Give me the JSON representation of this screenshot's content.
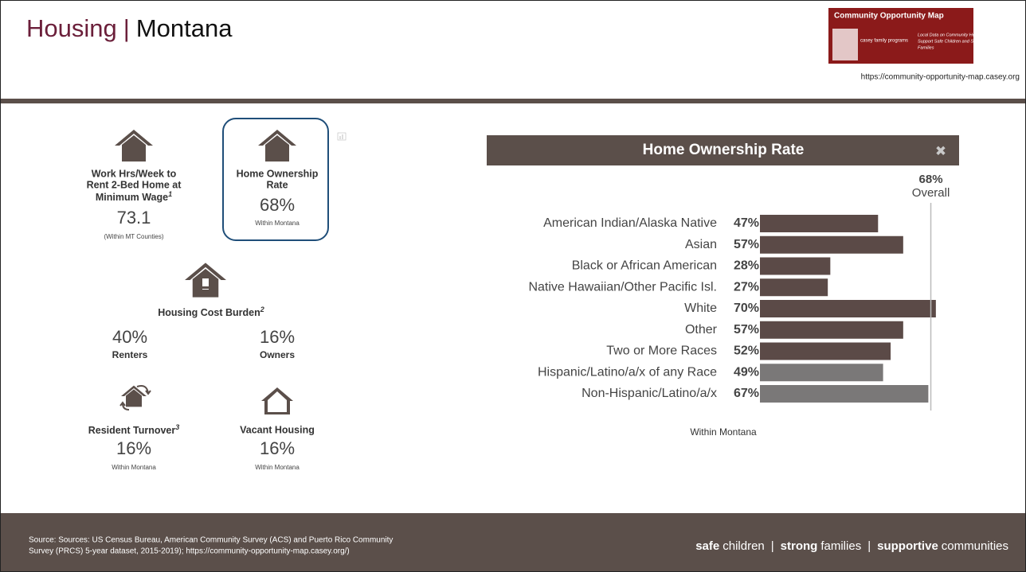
{
  "header": {
    "title": "Housing",
    "title_separator": "|",
    "subtitle": "Montana",
    "logo": {
      "title": "Community Opportunity Map",
      "brand": "casey family programs",
      "tagline": [
        "Local Data on Community Health to",
        "Support Safe Children and Strong",
        "Families"
      ]
    },
    "url": "https://community-opportunity-map.casey.org"
  },
  "tiles": [
    {
      "title": [
        "Work Hrs/Week to",
        "Rent 2-Bed Home at",
        "Minimum Wage"
      ],
      "footnote": "1",
      "value": "73.1",
      "note": "(Within MT Counties)"
    },
    {
      "title": [
        "Home Ownership",
        "Rate"
      ],
      "value": "68%",
      "note": "Within Montana"
    },
    {
      "title": [
        "Housing Cost Burden"
      ],
      "footnote": "2",
      "groups": [
        {
          "value": "40%",
          "label": "Renters"
        },
        {
          "value": "16%",
          "label": "Owners"
        }
      ]
    },
    {
      "title": [
        "Resident Turnover"
      ],
      "footnote": "3",
      "value": "16%",
      "note": "Within Montana"
    },
    {
      "title": [
        "Vacant Housing"
      ],
      "value": "16%",
      "note": "Within Montana"
    }
  ],
  "chart_data": {
    "type": "bar",
    "orientation": "horizontal",
    "title": "Home Ownership Rate",
    "categories": [
      "American Indian/Alaska Native",
      "Asian",
      "Black or African American",
      "Native Hawaiian/Other Pacific Isl.",
      "White",
      "Other",
      "Two or More Races",
      "Hispanic/Latino/a/x of any Race",
      "Non-Hispanic/Latino/a/x"
    ],
    "values": [
      47,
      57,
      28,
      27,
      70,
      57,
      52,
      49,
      67
    ],
    "value_labels": [
      "47%",
      "57%",
      "28%",
      "27%",
      "70%",
      "57%",
      "52%",
      "49%",
      "67%"
    ],
    "colors": [
      "#5b4a47",
      "#5b4a47",
      "#5b4a47",
      "#5b4a47",
      "#5b4a47",
      "#5b4a47",
      "#5b4a47",
      "#7a7878",
      "#7a7878"
    ],
    "reference": {
      "value": 68,
      "value_label": "68%",
      "name": "Overall"
    },
    "note": "Within Montana"
  },
  "footer": {
    "source": [
      "Source: Sources: US Census Bureau, American Community Survey (ACS) and Puerto Rico Community",
      "Survey (PRCS) 5-year dataset, 2015-2019); https://community-opportunity-map.casey.org/)"
    ],
    "tagline": [
      {
        "bold": "safe",
        "text": "children"
      },
      {
        "bold": "strong",
        "text": "families"
      },
      {
        "bold": "supportive",
        "text": "communities"
      }
    ],
    "separator": "|"
  }
}
